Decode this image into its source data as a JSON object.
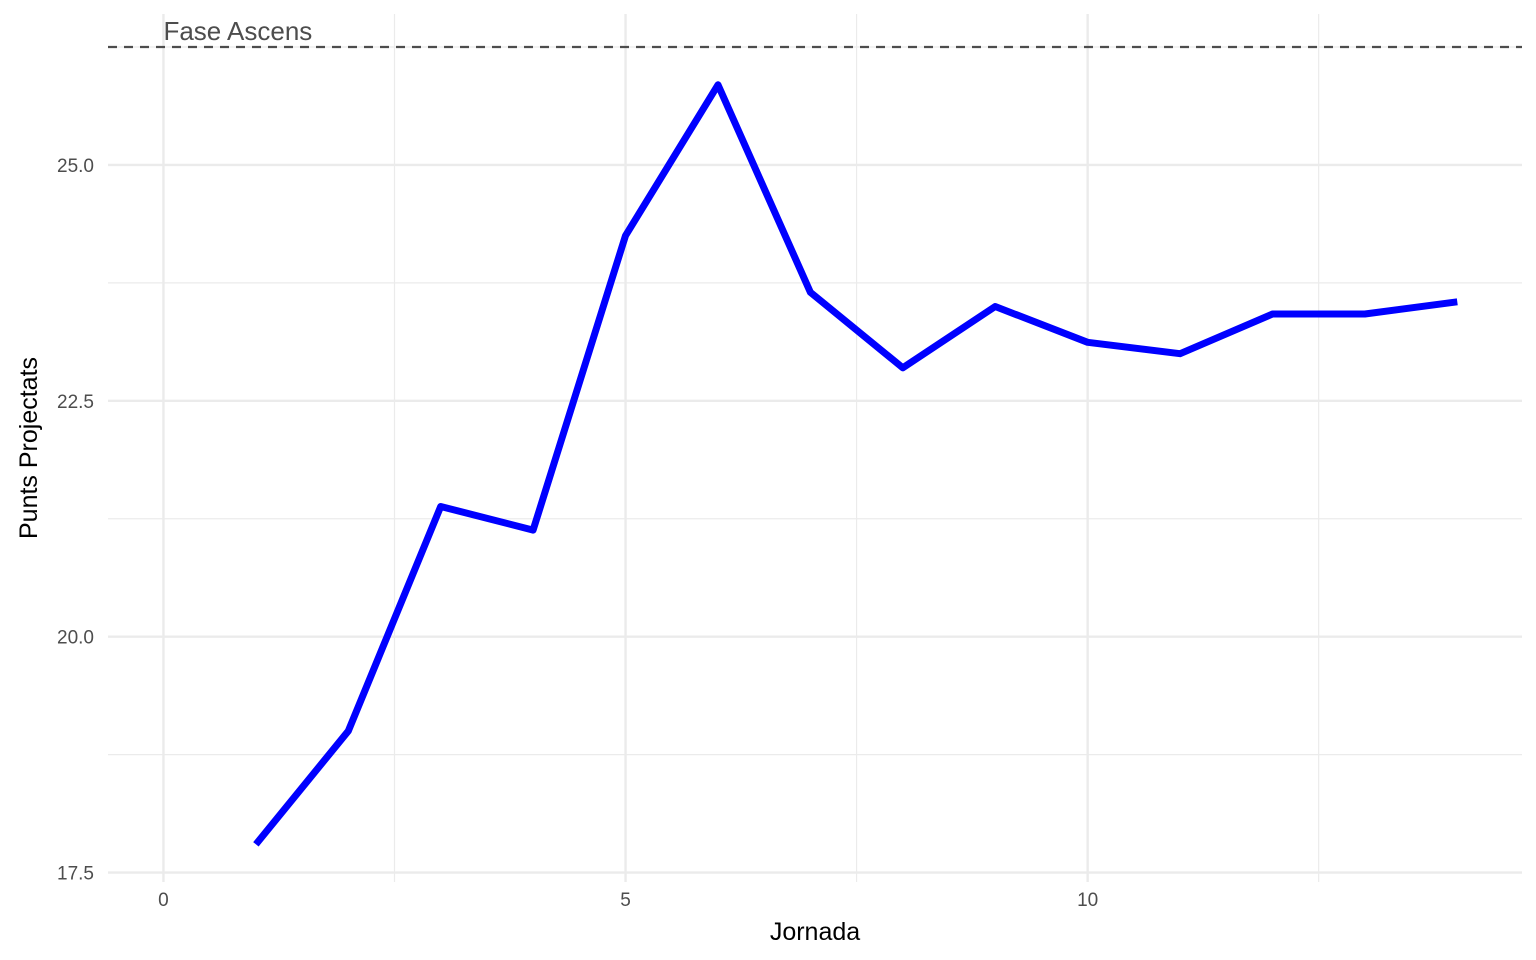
{
  "chart_data": {
    "type": "line",
    "title": "",
    "xlabel": "Jornada",
    "ylabel": "Punts Projectats",
    "x": [
      1,
      2,
      3,
      4,
      5,
      6,
      7,
      8,
      9,
      10,
      11,
      12,
      13,
      14
    ],
    "series": [
      {
        "values": [
          17.8,
          19.0,
          21.38,
          21.13,
          24.25,
          25.85,
          23.65,
          22.85,
          23.5,
          23.12,
          23.0,
          23.42,
          23.42,
          23.55
        ],
        "color": "#0000ff"
      }
    ],
    "xlim": [
      -0.6,
      14.7
    ],
    "ylim": [
      17.4,
      26.6
    ],
    "x_ticks": [
      0,
      5,
      10
    ],
    "x_tick_labels": [
      "0",
      "5",
      "10"
    ],
    "y_ticks": [
      17.5,
      20.0,
      22.5,
      25.0
    ],
    "y_tick_labels": [
      "17.5",
      "20.0",
      "22.5",
      "25.0"
    ],
    "grid": true,
    "reference_line": {
      "y": 26.25,
      "style": "dashed",
      "color": "#4d4d4d",
      "label": "Fase Ascens",
      "label_x": 0
    }
  }
}
